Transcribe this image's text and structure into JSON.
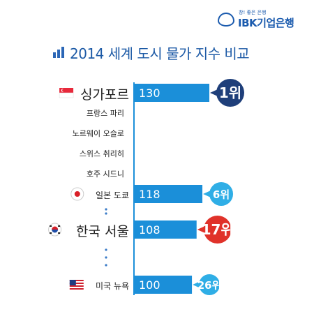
{
  "logo": {
    "tagline": "창! 좋은 은행",
    "brand": "IBK기업은행"
  },
  "title": "2014 세계 도시 물가 지수 비교",
  "colors": {
    "bar": "#1b8fd9",
    "rank_top": "#1f3f7a",
    "rank_korea": "#e0322a",
    "rank_other": "#2faee6",
    "dots": "#3a7bc8"
  },
  "chart_data": {
    "type": "bar",
    "title": "2014 세계 도시 물가 지수 비교",
    "xlabel": "",
    "ylabel": "",
    "categories": [
      "싱가포르",
      "프랑스 파리",
      "노르웨이 오슬로",
      "스위스 취리히",
      "호주 시드니",
      "일본 도쿄",
      "한국 서울",
      "미국 뉴욕"
    ],
    "bars": [
      {
        "city": "싱가포르",
        "value": 130,
        "label": "130",
        "rank": "1위",
        "flag": "singapore-flag"
      },
      {
        "city": "일본 도쿄",
        "value": 118,
        "label": "118",
        "rank": "6위",
        "flag": "japan-flag"
      },
      {
        "city": "한국 서울",
        "value": 108,
        "label": "108",
        "rank": "17위",
        "flag": "korea-flag"
      },
      {
        "city": "미국 뉴욕",
        "value": 100,
        "label": "100",
        "rank": "26위",
        "flag": "usa-flag"
      }
    ],
    "unlabeled_cities": [
      "프랑스 파리",
      "노르웨이 오슬로",
      "스위스 취리히",
      "호주 시드니"
    ],
    "grid": false,
    "legend": "none"
  }
}
